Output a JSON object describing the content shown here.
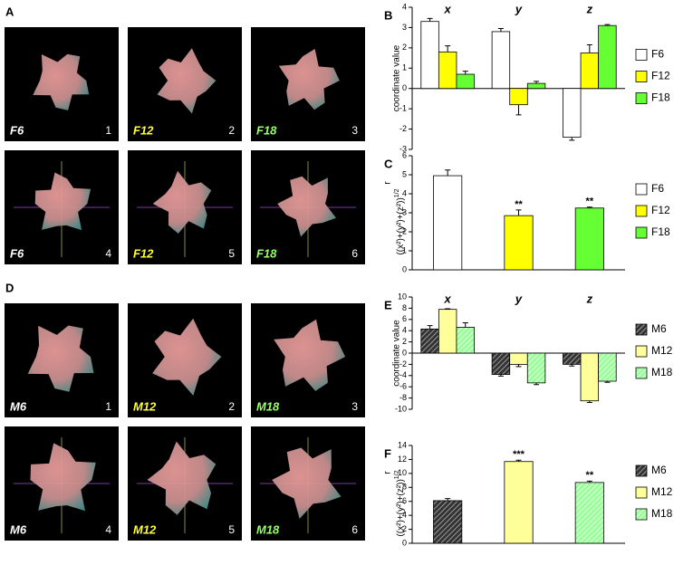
{
  "image_panels": [
    {
      "letter": "A",
      "tiles": [
        {
          "name": "F6",
          "number": 1,
          "color": "#ffffff"
        },
        {
          "name": "F12",
          "number": 2,
          "color": "#ffff33"
        },
        {
          "name": "F18",
          "number": 3,
          "color": "#99ff66"
        },
        {
          "name": "F6",
          "number": 4,
          "color": "#ffffff"
        },
        {
          "name": "F12",
          "number": 5,
          "color": "#ffff33"
        },
        {
          "name": "F18",
          "number": 6,
          "color": "#99ff66"
        }
      ]
    },
    {
      "letter": "D",
      "tiles": [
        {
          "name": "M6",
          "number": 1,
          "color": "#ffffff"
        },
        {
          "name": "M12",
          "number": 2,
          "color": "#ffff33"
        },
        {
          "name": "M18",
          "number": 3,
          "color": "#99ff66"
        },
        {
          "name": "M6",
          "number": 4,
          "color": "#ffffff"
        },
        {
          "name": "M12",
          "number": 5,
          "color": "#ffff33"
        },
        {
          "name": "M18",
          "number": 6,
          "color": "#99ff66"
        }
      ]
    }
  ],
  "chart_data": [
    {
      "type": "bar",
      "panel_label": "B",
      "ylabel": "coordinate value",
      "categories": [
        "x",
        "y",
        "z"
      ],
      "series": [
        {
          "name": "F6",
          "color": "#ffffff",
          "values": [
            3.3,
            2.8,
            -2.4
          ],
          "errors": [
            0.15,
            0.15,
            0.15
          ]
        },
        {
          "name": "F12",
          "color": "#ffff00",
          "values": [
            1.8,
            -0.8,
            1.75
          ],
          "errors": [
            0.3,
            0.5,
            0.4
          ]
        },
        {
          "name": "F18",
          "color": "#66ff33",
          "values": [
            0.7,
            0.25,
            3.1
          ],
          "errors": [
            0.15,
            0.1,
            0.05
          ]
        }
      ],
      "ylim": [
        -3,
        4
      ],
      "yticks": [
        -3,
        -2,
        -1,
        0,
        1,
        2,
        3,
        4
      ]
    },
    {
      "type": "bar",
      "panel_label": "C",
      "ylabel_top": "r",
      "ylabel": "((x²)+(y²)+(z²))",
      "ylabel_sup": "1/2",
      "categories": [
        "F6",
        "F12",
        "F18"
      ],
      "values": [
        4.95,
        2.85,
        3.25
      ],
      "errors": [
        0.3,
        0.3,
        0.05
      ],
      "colors": [
        "#ffffff",
        "#ffff00",
        "#66ff33"
      ],
      "value_annotations": [
        null,
        "**",
        "**"
      ],
      "ylim": [
        0,
        6
      ],
      "yticks": [
        0,
        1,
        2,
        3,
        4,
        5,
        6
      ]
    },
    {
      "type": "bar",
      "panel_label": "E",
      "ylabel": "coordinate value",
      "categories": [
        "x",
        "y",
        "z"
      ],
      "series": [
        {
          "name": "M6",
          "color": "#333333",
          "pattern": "hatch",
          "values": [
            4.3,
            -3.8,
            -2.0
          ],
          "errors": [
            0.6,
            0.3,
            0.3
          ]
        },
        {
          "name": "M12",
          "color": "#ffff99",
          "values": [
            7.8,
            -2.0,
            -8.5
          ],
          "errors": [
            0.1,
            0.4,
            0.3
          ]
        },
        {
          "name": "M18",
          "color": "#99ff99",
          "pattern": "hatch",
          "values": [
            4.6,
            -5.3,
            -5.0
          ],
          "errors": [
            0.8,
            0.3,
            0.2
          ]
        }
      ],
      "ylim": [
        -10,
        10
      ],
      "yticks": [
        -10,
        -8,
        -6,
        -4,
        -2,
        0,
        2,
        4,
        6,
        8,
        10
      ]
    },
    {
      "type": "bar",
      "panel_label": "F",
      "ylabel_top": "r",
      "ylabel": "((x²)+(y²)+(z²))",
      "ylabel_sup": "1/2",
      "categories": [
        "M6",
        "M12",
        "M18"
      ],
      "values": [
        6.1,
        11.7,
        8.7
      ],
      "errors": [
        0.3,
        0.2,
        0.2
      ],
      "colors": [
        "#333333",
        "#ffff99",
        "#99ff99"
      ],
      "patterns": [
        "hatch",
        null,
        "hatch"
      ],
      "value_annotations": [
        null,
        "***",
        "**"
      ],
      "ylim": [
        0,
        14
      ],
      "yticks": [
        0,
        2,
        4,
        6,
        8,
        10,
        12,
        14
      ]
    }
  ]
}
